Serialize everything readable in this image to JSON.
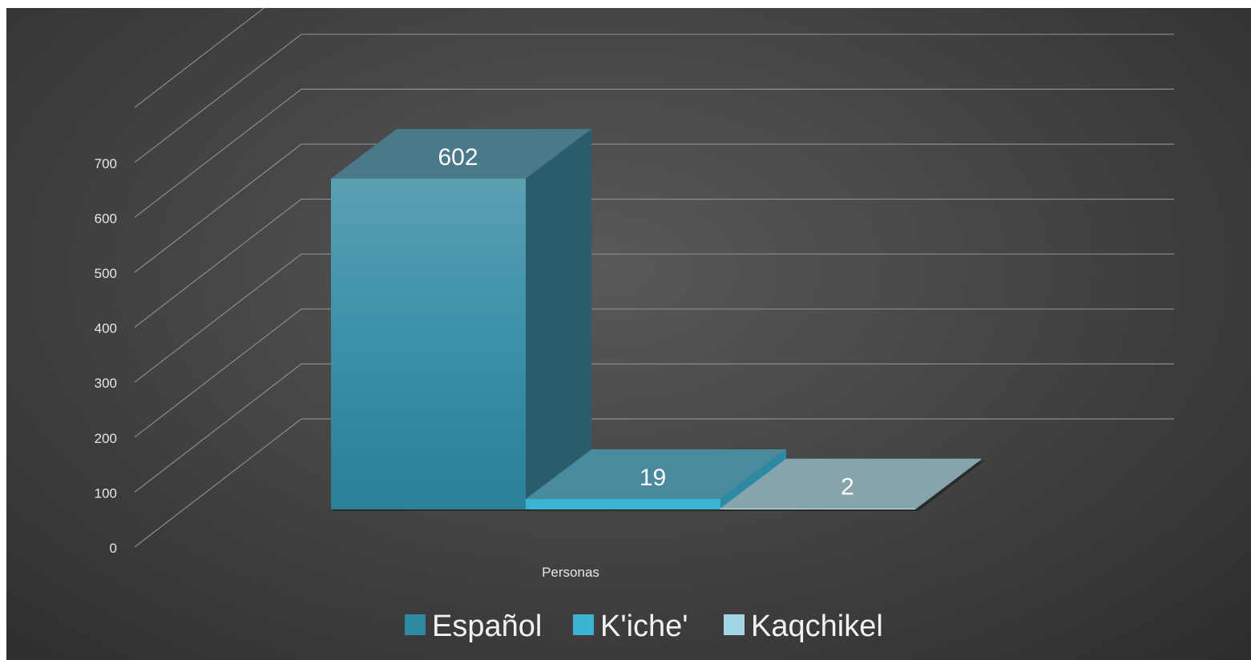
{
  "chart_data": {
    "type": "bar",
    "categories": [
      "Personas"
    ],
    "series": [
      {
        "name": "Español",
        "values": [
          602
        ],
        "color": "#2e8aa1"
      },
      {
        "name": "K'iche'",
        "values": [
          19
        ],
        "color": "#3cb3d3"
      },
      {
        "name": "Kaqchikel",
        "values": [
          2
        ],
        "color": "#a4d6e6"
      }
    ],
    "ylim": [
      0,
      700
    ],
    "yticks": [
      "0",
      "100",
      "200",
      "300",
      "400",
      "500",
      "600",
      "700"
    ],
    "xlabel": "Personas",
    "legend": "bottom",
    "grid": true,
    "style": "3d-clustered-column"
  }
}
